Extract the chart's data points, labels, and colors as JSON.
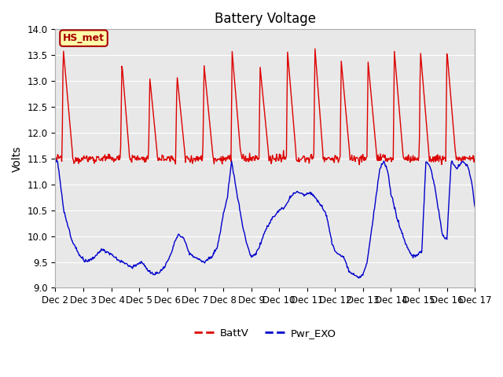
{
  "title": "Battery Voltage",
  "ylabel": "Volts",
  "ylim": [
    9.0,
    14.0
  ],
  "yticks": [
    9.0,
    9.5,
    10.0,
    10.5,
    11.0,
    11.5,
    12.0,
    12.5,
    13.0,
    13.5,
    14.0
  ],
  "xtick_labels": [
    "Dec 2",
    "Dec 3",
    "Dec 4",
    "Dec 5",
    "Dec 6",
    "Dec 7",
    "Dec 8",
    "Dec 9",
    "Dec 10",
    "Dec 11",
    "Dec 12",
    "Dec 13",
    "Dec 14",
    "Dec 15",
    "Dec 16",
    "Dec 17"
  ],
  "line1_color": "#dd0000",
  "line2_color": "#0000cc",
  "line1_label": "BattV",
  "line2_label": "Pwr_EXO",
  "annotation_text": "HS_met",
  "annotation_bg": "#ffffaa",
  "annotation_border": "#aa0000",
  "bg_color": "#e8e8e8",
  "fig_bg": "#ffffff",
  "title_fontsize": 12,
  "label_fontsize": 10,
  "tick_fontsize": 8.5
}
